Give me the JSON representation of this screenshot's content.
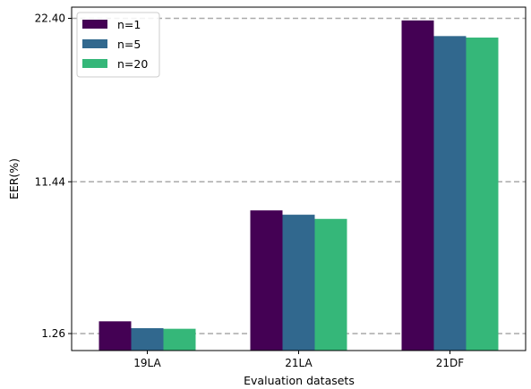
{
  "chart_data": {
    "type": "bar",
    "categories": [
      "19LA",
      "21LA",
      "21DF"
    ],
    "series": [
      {
        "name": "n=1",
        "color": "#440154",
        "values": [
          2.08,
          9.52,
          22.26
        ]
      },
      {
        "name": "n=5",
        "color": "#31688e",
        "values": [
          1.62,
          9.23,
          21.21
        ]
      },
      {
        "name": "n=20",
        "color": "#35b779",
        "values": [
          1.58,
          8.95,
          21.11
        ]
      }
    ],
    "xlabel": "Evaluation datasets",
    "ylabel": "EER(%)",
    "yticks": [
      1.26,
      11.44,
      22.4
    ],
    "ytick_labels": [
      "1.26",
      "11.44",
      "22.40"
    ],
    "ylim": [
      0.12,
      23.15
    ],
    "grid": "horizontal dashed at y ticks",
    "legend_position": "top-left"
  }
}
